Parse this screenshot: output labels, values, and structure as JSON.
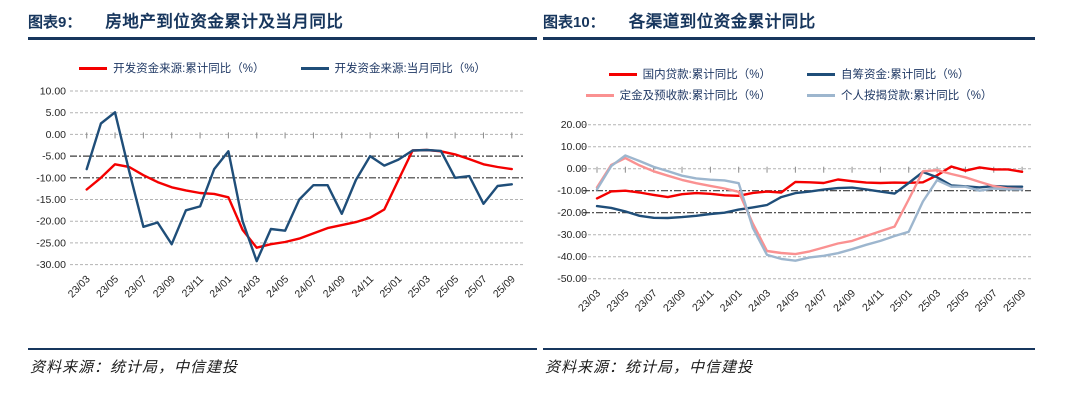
{
  "colors": {
    "accent_navy": "#17365D",
    "series_red": "#F40000",
    "series_dark_blue": "#1F4E79",
    "series_pink": "#FA9191",
    "series_light_blue": "#9DB6CE"
  },
  "panels": [
    {
      "title_prefix": "图表9：",
      "title": "房地产到位资金累计及当月同比",
      "source": "资料来源：统计局，中信建投",
      "chart_data": {
        "type": "line",
        "grid": true,
        "legend_position": "top",
        "legend_rows": [
          [
            0,
            1
          ]
        ],
        "categories": [
          "23/03",
          "23/04",
          "23/05",
          "23/06",
          "23/07",
          "23/08",
          "23/09",
          "23/10",
          "23/11",
          "23/12",
          "24/01",
          "24/02",
          "24/03",
          "24/04",
          "24/05",
          "24/06",
          "24/07",
          "24/08",
          "24/09",
          "24/10",
          "24/11",
          "24/12",
          "25/01",
          "25/02",
          "25/03",
          "25/04",
          "25/05",
          "25/06",
          "25/07",
          "25/08",
          "25/09"
        ],
        "x_label_every": 2,
        "x_tick_labels": [
          "23/03",
          "23/05",
          "23/07",
          "23/09",
          "23/11",
          "24/01",
          "24/03",
          "24/05",
          "24/07",
          "24/09",
          "24/11",
          "25/01",
          "25/03",
          "25/05",
          "25/07",
          "25/09"
        ],
        "ylim": [
          -30,
          10
        ],
        "y_step": 5,
        "y_tick_labels": [
          "10.00",
          "5.00",
          "0.00",
          "-5.00",
          "-10.00",
          "-15.00",
          "-20.00",
          "-25.00",
          "-30.00"
        ],
        "dark_gridlines": [
          -5,
          -10
        ],
        "series": [
          {
            "name": "开发资金来源:累计同比（%）",
            "color": "#F40000",
            "values": [
              -12.7,
              -10.0,
              -6.9,
              -7.5,
              -9.4,
              -11.0,
              -12.2,
              -12.9,
              -13.5,
              -13.7,
              -14.5,
              -22.0,
              -26.1,
              -25.3,
              -24.8,
              -24.0,
              -22.8,
              -21.6,
              -20.9,
              -20.2,
              -19.2,
              -17.3,
              -10.5,
              -3.7,
              -3.6,
              -3.9,
              -4.6,
              -5.7,
              -6.9,
              -7.5,
              -8.0
            ]
          },
          {
            "name": "开发资金来源:当月同比（%）",
            "color": "#1F4E79",
            "values": [
              -8.0,
              2.5,
              5.1,
              -8.5,
              -21.3,
              -20.3,
              -25.3,
              -17.5,
              -16.6,
              -8.0,
              -3.9,
              -20.0,
              -29.2,
              -21.8,
              -22.2,
              -15.0,
              -11.7,
              -11.7,
              -18.3,
              -10.5,
              -5.0,
              -7.2,
              -5.8,
              -3.7,
              -3.6,
              -3.8,
              -10.0,
              -9.6,
              -16.0,
              -11.9,
              -11.5
            ]
          }
        ]
      }
    },
    {
      "title_prefix": "图表10：",
      "title": "各渠道到位资金累计同比",
      "source": "资料来源：统计局，中信建投",
      "chart_data": {
        "type": "line",
        "grid": true,
        "legend_position": "top",
        "legend_rows": [
          [
            0,
            1
          ],
          [
            2,
            3
          ]
        ],
        "categories": [
          "23/03",
          "23/04",
          "23/05",
          "23/06",
          "23/07",
          "23/08",
          "23/09",
          "23/10",
          "23/11",
          "23/12",
          "24/01",
          "24/02",
          "24/03",
          "24/04",
          "24/05",
          "24/06",
          "24/07",
          "24/08",
          "24/09",
          "24/10",
          "24/11",
          "24/12",
          "25/01",
          "25/02",
          "25/03",
          "25/04",
          "25/05",
          "25/06",
          "25/07",
          "25/08",
          "25/09"
        ],
        "x_label_every": 2,
        "x_tick_labels": [
          "23/03",
          "23/05",
          "23/07",
          "23/09",
          "23/11",
          "24/01",
          "24/03",
          "24/05",
          "24/07",
          "24/09",
          "24/11",
          "25/01",
          "25/03",
          "25/05",
          "25/07",
          "25/09"
        ],
        "ylim": [
          -50,
          20
        ],
        "y_step": 10,
        "y_tick_labels": [
          "20.00",
          "10.00",
          "0.00",
          "-10.00",
          "-20.00",
          "-30.00",
          "-40.00",
          "-50.00"
        ],
        "dark_gridlines": [
          -10,
          -20
        ],
        "series": [
          {
            "name": "国内贷款:累计同比（%）",
            "color": "#F40000",
            "values": [
              -13.5,
              -10.3,
              -10.0,
              -10.8,
              -11.9,
              -12.9,
              -11.6,
              -11.1,
              -11.4,
              -12.1,
              -12.3,
              -11.0,
              -10.4,
              -10.8,
              -6.0,
              -6.2,
              -6.5,
              -4.9,
              -5.7,
              -6.3,
              -6.5,
              -6.3,
              -6.4,
              -6.2,
              -3.0,
              1.0,
              -0.9,
              0.6,
              -0.3,
              -0.3,
              -1.4
            ]
          },
          {
            "name": "自筹资金:累计同比（%）",
            "color": "#1F4E79",
            "values": [
              -17.0,
              -17.8,
              -19.4,
              -21.4,
              -22.3,
              -22.4,
              -22.0,
              -21.4,
              -20.6,
              -20.0,
              -18.6,
              -17.6,
              -16.5,
              -12.9,
              -11.1,
              -10.4,
              -9.5,
              -8.8,
              -8.6,
              -9.4,
              -10.4,
              -11.3,
              -6.5,
              -1.5,
              -3.9,
              -7.6,
              -8.0,
              -8.5,
              -7.9,
              -8.2,
              -8.2
            ]
          },
          {
            "name": "定金及预收款:累计同比（%）",
            "color": "#FA9191",
            "values": [
              -8.5,
              1.7,
              4.8,
              1.5,
              -1.2,
              -3.2,
              -5.1,
              -6.6,
              -7.8,
              -9.0,
              -10.5,
              -25.0,
              -37.4,
              -38.3,
              -38.8,
              -37.6,
              -35.8,
              -34.0,
              -32.8,
              -30.6,
              -28.4,
              -26.3,
              -14.0,
              -1.2,
              -0.7,
              -2.4,
              -3.9,
              -6.0,
              -7.9,
              -9.0,
              -9.3
            ]
          },
          {
            "name": "个人按揭贷款:累计同比（%）",
            "color": "#9DB6CE",
            "values": [
              -9.4,
              1.2,
              6.0,
              3.5,
              0.8,
              -1.1,
              -3.2,
              -4.4,
              -5.0,
              -5.3,
              -6.6,
              -27.0,
              -39.2,
              -41.0,
              -41.8,
              -40.3,
              -39.6,
              -38.4,
              -36.6,
              -34.6,
              -32.8,
              -30.6,
              -28.7,
              -14.9,
              -5.2,
              -8.2,
              -8.2,
              -10.0,
              -9.0,
              -9.4,
              -9.4
            ]
          }
        ]
      }
    }
  ]
}
